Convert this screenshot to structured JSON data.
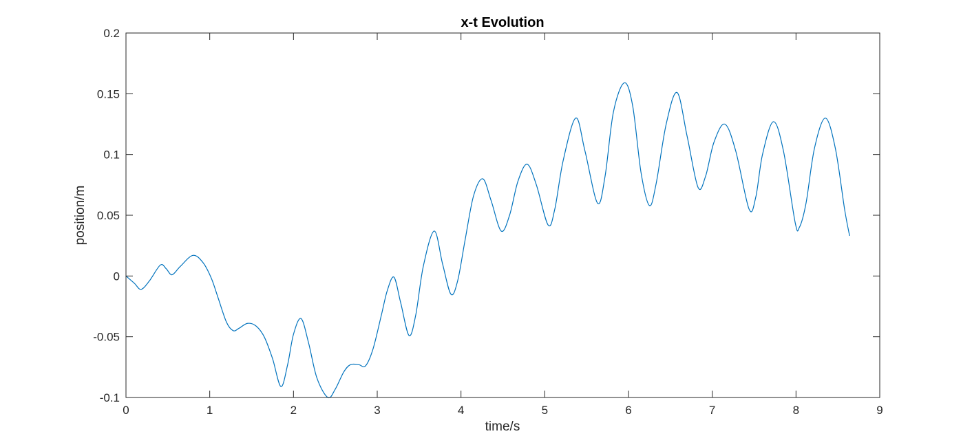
{
  "chart_data": {
    "type": "line",
    "title": "x-t Evolution",
    "xlabel": "time/s",
    "ylabel": "position/m",
    "xlim": [
      0,
      9
    ],
    "ylim": [
      -0.1,
      0.2
    ],
    "xticks": [
      0,
      1,
      2,
      3,
      4,
      5,
      6,
      7,
      8,
      9
    ],
    "xtick_labels": [
      "0",
      "1",
      "2",
      "3",
      "4",
      "5",
      "6",
      "7",
      "8",
      "9"
    ],
    "yticks": [
      -0.1,
      -0.05,
      0,
      0.05,
      0.1,
      0.15,
      0.2
    ],
    "ytick_labels": [
      "-0.1",
      "-0.05",
      "0",
      "0.05",
      "0.1",
      "0.15",
      "0.2"
    ],
    "grid": false,
    "box": true,
    "series": [
      {
        "color": "#0072BD",
        "points": [
          [
            0.0,
            0.0
          ],
          [
            0.1,
            -0.006
          ],
          [
            0.18,
            -0.011
          ],
          [
            0.28,
            -0.004
          ],
          [
            0.41,
            0.009
          ],
          [
            0.48,
            0.006
          ],
          [
            0.55,
            0.001
          ],
          [
            0.65,
            0.008
          ],
          [
            0.8,
            0.017
          ],
          [
            0.92,
            0.011
          ],
          [
            1.02,
            -0.002
          ],
          [
            1.1,
            -0.018
          ],
          [
            1.2,
            -0.038
          ],
          [
            1.28,
            -0.045
          ],
          [
            1.35,
            -0.043
          ],
          [
            1.45,
            -0.039
          ],
          [
            1.55,
            -0.041
          ],
          [
            1.65,
            -0.05
          ],
          [
            1.75,
            -0.068
          ],
          [
            1.85,
            -0.091
          ],
          [
            1.93,
            -0.073
          ],
          [
            2.0,
            -0.048
          ],
          [
            2.09,
            -0.035
          ],
          [
            2.18,
            -0.055
          ],
          [
            2.28,
            -0.084
          ],
          [
            2.41,
            -0.1
          ],
          [
            2.5,
            -0.093
          ],
          [
            2.6,
            -0.079
          ],
          [
            2.68,
            -0.073
          ],
          [
            2.78,
            -0.073
          ],
          [
            2.86,
            -0.074
          ],
          [
            2.95,
            -0.06
          ],
          [
            3.05,
            -0.032
          ],
          [
            3.12,
            -0.012
          ],
          [
            3.2,
            -0.001
          ],
          [
            3.28,
            -0.022
          ],
          [
            3.38,
            -0.049
          ],
          [
            3.46,
            -0.032
          ],
          [
            3.55,
            0.008
          ],
          [
            3.68,
            0.037
          ],
          [
            3.78,
            0.01
          ],
          [
            3.88,
            -0.015
          ],
          [
            3.96,
            -0.004
          ],
          [
            4.05,
            0.03
          ],
          [
            4.15,
            0.066
          ],
          [
            4.26,
            0.08
          ],
          [
            4.36,
            0.062
          ],
          [
            4.48,
            0.037
          ],
          [
            4.58,
            0.05
          ],
          [
            4.68,
            0.078
          ],
          [
            4.79,
            0.092
          ],
          [
            4.9,
            0.075
          ],
          [
            5.04,
            0.042
          ],
          [
            5.12,
            0.055
          ],
          [
            5.22,
            0.095
          ],
          [
            5.37,
            0.13
          ],
          [
            5.48,
            0.103
          ],
          [
            5.63,
            0.06
          ],
          [
            5.72,
            0.082
          ],
          [
            5.82,
            0.135
          ],
          [
            5.95,
            0.159
          ],
          [
            6.05,
            0.14
          ],
          [
            6.15,
            0.085
          ],
          [
            6.25,
            0.058
          ],
          [
            6.33,
            0.076
          ],
          [
            6.45,
            0.125
          ],
          [
            6.58,
            0.151
          ],
          [
            6.7,
            0.115
          ],
          [
            6.83,
            0.073
          ],
          [
            6.92,
            0.082
          ],
          [
            7.02,
            0.11
          ],
          [
            7.15,
            0.125
          ],
          [
            7.28,
            0.103
          ],
          [
            7.44,
            0.055
          ],
          [
            7.52,
            0.065
          ],
          [
            7.6,
            0.1
          ],
          [
            7.73,
            0.127
          ],
          [
            7.85,
            0.103
          ],
          [
            7.99,
            0.044
          ],
          [
            8.04,
            0.04
          ],
          [
            8.12,
            0.06
          ],
          [
            8.22,
            0.105
          ],
          [
            8.35,
            0.13
          ],
          [
            8.47,
            0.105
          ],
          [
            8.58,
            0.055
          ],
          [
            8.64,
            0.033
          ]
        ]
      }
    ]
  }
}
